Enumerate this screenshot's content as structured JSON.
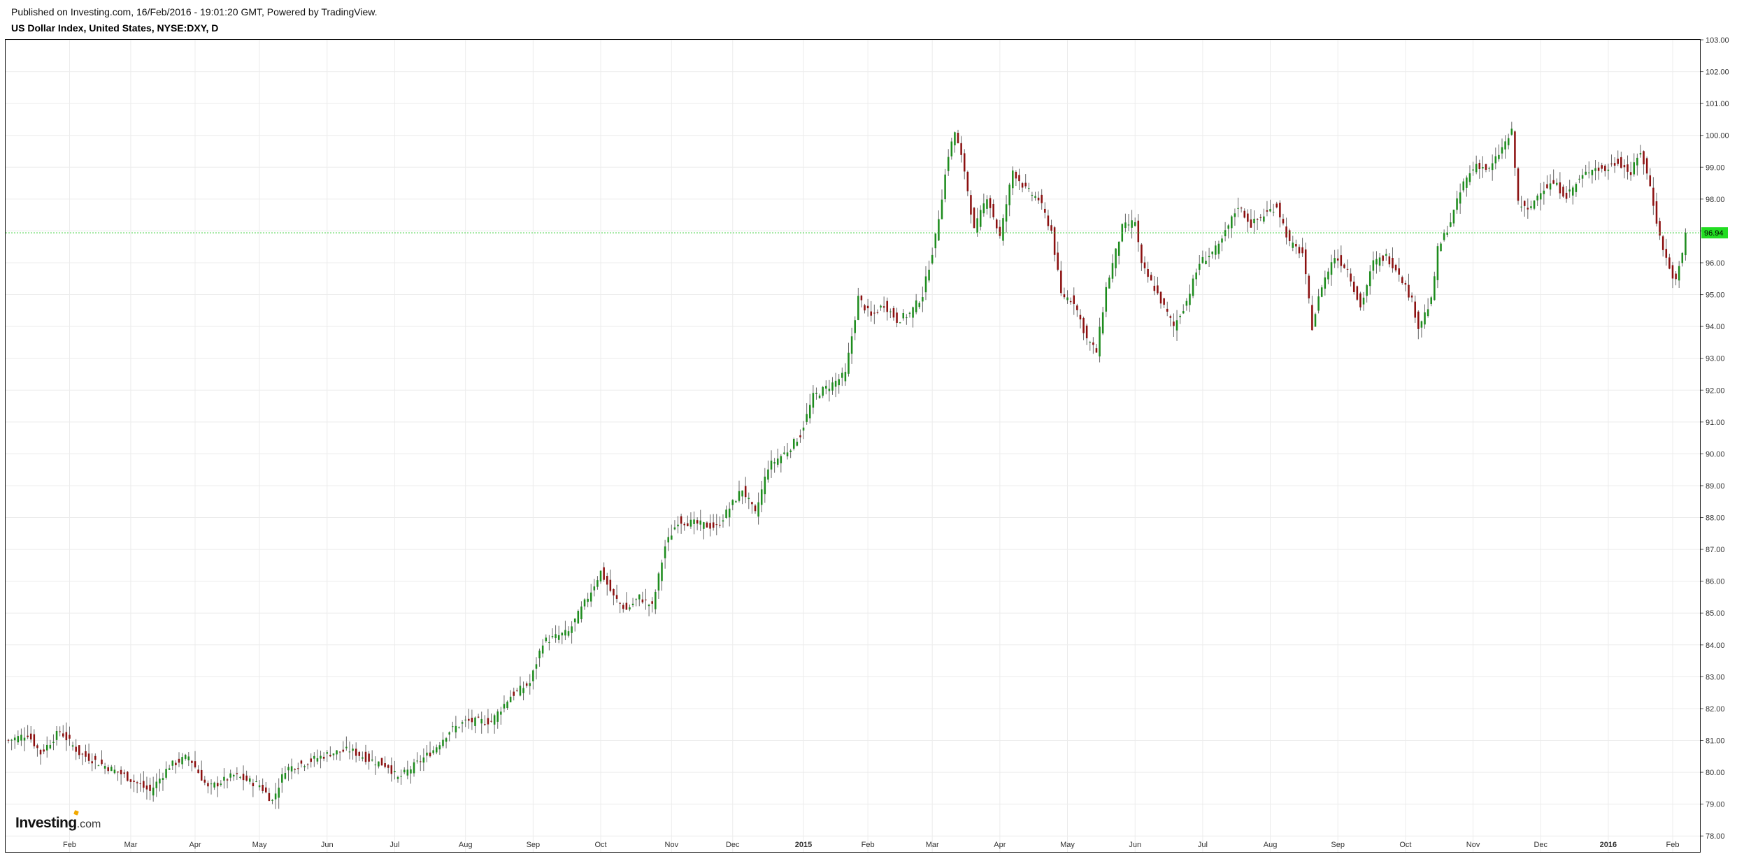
{
  "header": {
    "published": "Published on Investing.com, 16/Feb/2016 - 19:01:20 GMT, Powered by TradingView.",
    "title": "US Dollar Index, United States, NYSE:DXY, D"
  },
  "logo": {
    "brand": "Investing",
    "suffix": ".com"
  },
  "colors": {
    "up": "#1e8c1e",
    "down": "#8b1010",
    "wick": "#666666",
    "grid": "#ececec",
    "last_price_line": "#33cc33",
    "last_price_badge": "#22dd22",
    "axis_text": "#333333"
  },
  "chart_data": {
    "type": "candlestick",
    "title": "US Dollar Index, United States, NYSE:DXY, D",
    "interval": "D",
    "last_price": 96.94,
    "last_price_label": "96.94",
    "ylim": [
      77.5,
      103.0
    ],
    "y_ticks": [
      "78.00",
      "79.00",
      "80.00",
      "81.00",
      "82.00",
      "83.00",
      "84.00",
      "85.00",
      "86.00",
      "87.00",
      "88.00",
      "89.00",
      "90.00",
      "91.00",
      "92.00",
      "93.00",
      "94.00",
      "95.00",
      "96.00",
      "97.00",
      "98.00",
      "99.00",
      "100.00",
      "101.00",
      "102.00",
      "103.00"
    ],
    "x_ticks": [
      "Feb",
      "Mar",
      "Apr",
      "May",
      "Jun",
      "Jul",
      "Aug",
      "Sep",
      "Oct",
      "Nov",
      "Dec",
      "2015",
      "Feb",
      "Mar",
      "Apr",
      "May",
      "Jun",
      "Jul",
      "Aug",
      "Sep",
      "Oct",
      "Nov",
      "Dec",
      "2016",
      "Feb"
    ],
    "x_tick_index": [
      19,
      38,
      58,
      78,
      99,
      120,
      142,
      163,
      184,
      206,
      225,
      247,
      267,
      287,
      308,
      329,
      350,
      371,
      392,
      413,
      434,
      455,
      476,
      497,
      517
    ],
    "x_bold_ticks": [
      "2015",
      "2016"
    ],
    "grid": true,
    "close_anchors": [
      [
        0,
        81.0
      ],
      [
        6,
        81.2
      ],
      [
        10,
        80.6
      ],
      [
        16,
        81.3
      ],
      [
        22,
        80.6
      ],
      [
        30,
        80.2
      ],
      [
        36,
        79.9
      ],
      [
        44,
        79.4
      ],
      [
        50,
        80.2
      ],
      [
        56,
        80.5
      ],
      [
        62,
        79.5
      ],
      [
        70,
        79.9
      ],
      [
        78,
        79.6
      ],
      [
        82,
        79.1
      ],
      [
        86,
        80.1
      ],
      [
        92,
        80.3
      ],
      [
        100,
        80.6
      ],
      [
        106,
        80.7
      ],
      [
        112,
        80.4
      ],
      [
        118,
        80.2
      ],
      [
        121,
        79.8
      ],
      [
        126,
        80.2
      ],
      [
        132,
        80.7
      ],
      [
        137,
        81.3
      ],
      [
        142,
        81.6
      ],
      [
        150,
        81.6
      ],
      [
        156,
        82.4
      ],
      [
        162,
        82.8
      ],
      [
        166,
        84.1
      ],
      [
        174,
        84.4
      ],
      [
        180,
        85.5
      ],
      [
        184,
        86.3
      ],
      [
        188,
        85.5
      ],
      [
        192,
        85.1
      ],
      [
        196,
        85.5
      ],
      [
        200,
        85.2
      ],
      [
        204,
        87.1
      ],
      [
        208,
        87.9
      ],
      [
        214,
        87.8
      ],
      [
        220,
        87.7
      ],
      [
        224,
        88.3
      ],
      [
        228,
        88.9
      ],
      [
        232,
        88.1
      ],
      [
        236,
        89.6
      ],
      [
        242,
        90.1
      ],
      [
        246,
        90.6
      ],
      [
        250,
        91.8
      ],
      [
        256,
        92.2
      ],
      [
        260,
        92.5
      ],
      [
        264,
        94.9
      ],
      [
        268,
        94.3
      ],
      [
        272,
        94.7
      ],
      [
        276,
        94.2
      ],
      [
        280,
        94.4
      ],
      [
        284,
        95.0
      ],
      [
        288,
        96.8
      ],
      [
        292,
        99.4
      ],
      [
        294,
        100.1
      ],
      [
        297,
        98.9
      ],
      [
        300,
        97.0
      ],
      [
        304,
        98.1
      ],
      [
        308,
        96.8
      ],
      [
        312,
        98.9
      ],
      [
        316,
        98.3
      ],
      [
        320,
        98.0
      ],
      [
        324,
        97.0
      ],
      [
        327,
        95.0
      ],
      [
        331,
        94.8
      ],
      [
        335,
        93.6
      ],
      [
        338,
        93.2
      ],
      [
        341,
        95.2
      ],
      [
        346,
        97.1
      ],
      [
        350,
        97.3
      ],
      [
        352,
        95.9
      ],
      [
        356,
        95.2
      ],
      [
        360,
        94.4
      ],
      [
        362,
        94.0
      ],
      [
        366,
        94.8
      ],
      [
        370,
        96.0
      ],
      [
        376,
        96.5
      ],
      [
        382,
        97.8
      ],
      [
        386,
        97.2
      ],
      [
        390,
        97.5
      ],
      [
        394,
        97.8
      ],
      [
        398,
        96.6
      ],
      [
        402,
        96.3
      ],
      [
        405,
        94.0
      ],
      [
        408,
        95.3
      ],
      [
        412,
        96.2
      ],
      [
        416,
        95.8
      ],
      [
        420,
        94.6
      ],
      [
        424,
        96.0
      ],
      [
        428,
        96.2
      ],
      [
        432,
        95.7
      ],
      [
        436,
        94.8
      ],
      [
        438,
        94.0
      ],
      [
        442,
        94.8
      ],
      [
        444,
        96.4
      ],
      [
        448,
        97.3
      ],
      [
        452,
        98.5
      ],
      [
        456,
        99.1
      ],
      [
        460,
        98.9
      ],
      [
        464,
        99.6
      ],
      [
        467,
        100.1
      ],
      [
        469,
        97.9
      ],
      [
        472,
        97.6
      ],
      [
        476,
        98.3
      ],
      [
        480,
        98.5
      ],
      [
        484,
        98.1
      ],
      [
        488,
        98.6
      ],
      [
        492,
        99.0
      ],
      [
        496,
        98.9
      ],
      [
        500,
        99.2
      ],
      [
        504,
        98.8
      ],
      [
        507,
        99.5
      ],
      [
        510,
        98.4
      ],
      [
        513,
        96.8
      ],
      [
        516,
        95.8
      ],
      [
        518,
        95.4
      ],
      [
        520,
        96.3
      ],
      [
        521,
        96.94
      ]
    ]
  }
}
